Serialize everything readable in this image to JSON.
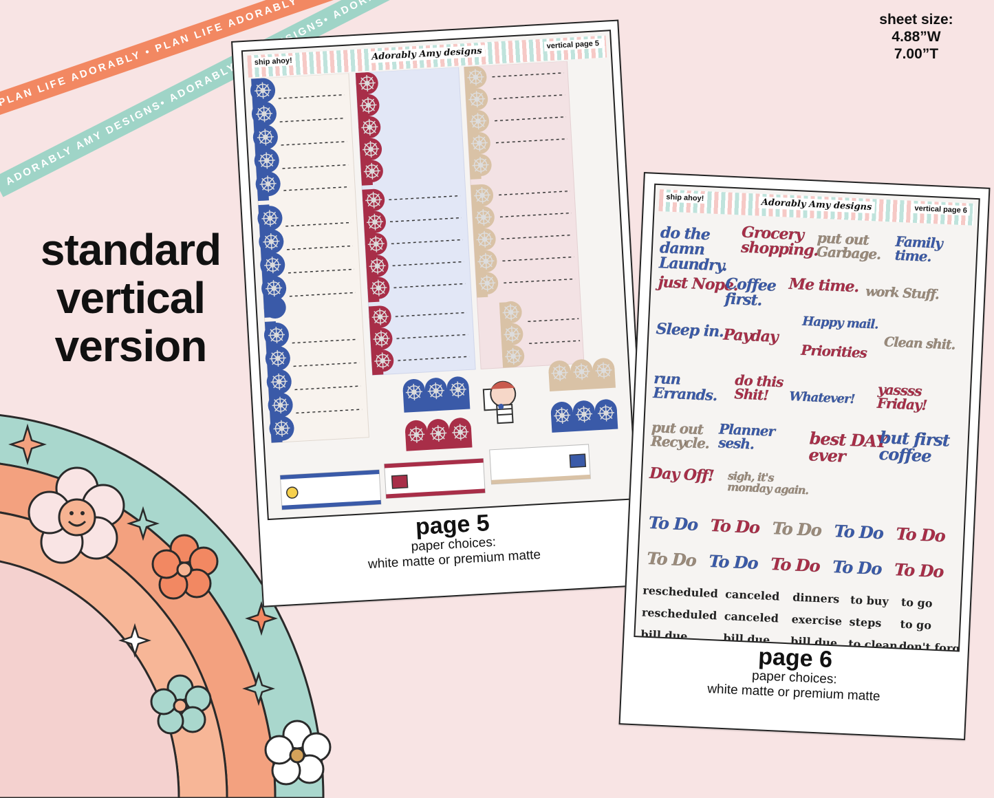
{
  "ribbons": {
    "orange_text": "PLAN LIFE ADORABLY • PLAN LIFE ADORABLY • PLAN LIFE ADORABLY •",
    "mint_text": "ADORABLY AMY DESIGNS• ADORABLY AMY DESIGNS• ADORABLY AMY DESIGNS•"
  },
  "sheet_size": {
    "label": "sheet size:",
    "width": "4.88”W",
    "height": "7.00”T"
  },
  "headline": {
    "line1": "standard",
    "line2": "vertical",
    "line3": "version"
  },
  "page5": {
    "header_left": "ship ahoy!",
    "header_logo": "Adorably Amy designs",
    "header_right": "vertical page 5",
    "caption_title": "page 5",
    "caption_line1": "paper choices:",
    "caption_line2": "white matte or premium matte"
  },
  "page6": {
    "header_left": "ship ahoy!",
    "header_logo": "Adorably Amy designs",
    "header_right": "vertical page 6",
    "caption_title": "page 6",
    "caption_line1": "paper choices:",
    "caption_line2": "white matte or premium matte",
    "script_words": [
      "do the damn Laundry.",
      "Grocery shopping.",
      "put out Garbage.",
      "Family time.",
      "just Nope.",
      "Coffee first.",
      "Me time.",
      "work Stuff.",
      "Sleep in.",
      "Payday",
      "Happy mail.",
      "Priorities",
      "Clean shit.",
      "run Errands.",
      "do this Shit!",
      "Whatever!",
      "yassss Friday!",
      "put out Recycle.",
      "Planner sesh.",
      "best DAY ever",
      "but first coffee",
      "Day Off!",
      "sigh, it's monday again."
    ],
    "todo_label": "To Do",
    "small_rows": [
      [
        "rescheduled",
        "canceled",
        "dinners",
        "to buy",
        "to go"
      ],
      [
        "rescheduled",
        "canceled",
        "exercise",
        "steps",
        "to go"
      ],
      [
        "bill due",
        "bill due",
        "bill due",
        "to clean",
        "don't forget"
      ]
    ]
  },
  "colors": {
    "navy": "#3a5aa8",
    "red": "#a82e48",
    "tan": "#d9c2a6",
    "cream": "#f8f3ee",
    "lightblue": "#e2e7f6",
    "lightpink": "#f3e2e4",
    "orange": "#f28862",
    "mint": "#9fd4c7",
    "background": "#f8e4e4"
  }
}
